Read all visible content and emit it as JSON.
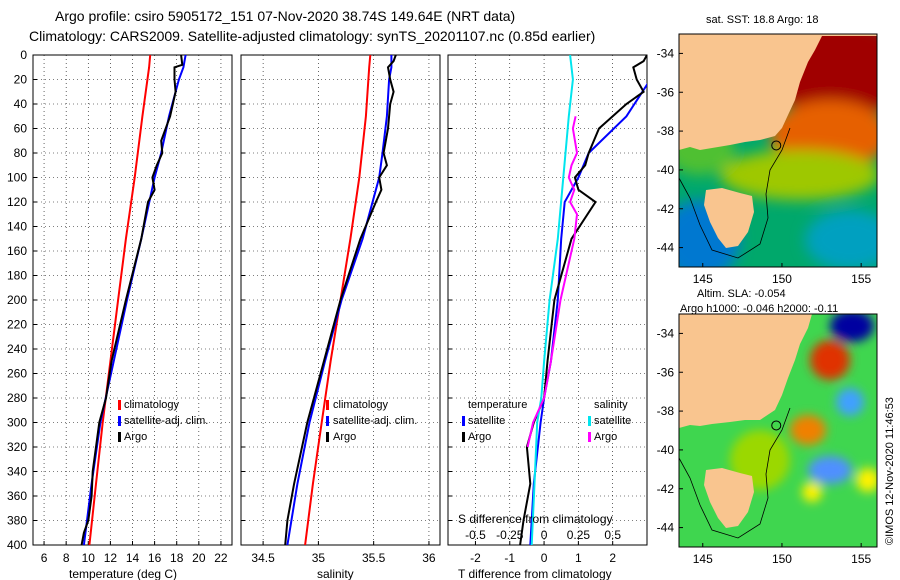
{
  "header": {
    "line1": "Argo profile: csiro 5905172_151 07-Nov-2020 38.74S 149.64E (NRT data)",
    "line2": "Climatology: CARS2009. Satellite-adjusted climatology: synTS_20201107.nc (0.85d earlier)"
  },
  "colors": {
    "climatology": "#ff0000",
    "satellite": "#0000ff",
    "argo": "#000000",
    "salinity_diff": "#ff00ff",
    "sat_salinity_diff": "#00e5ee",
    "land": "#f9c58f"
  },
  "yaxis": {
    "ticks": [
      0,
      20,
      40,
      60,
      80,
      100,
      120,
      140,
      160,
      180,
      200,
      220,
      240,
      260,
      280,
      300,
      320,
      340,
      360,
      380,
      400
    ],
    "labels": [
      "0",
      "20",
      "40",
      "60",
      "80",
      "100",
      "120",
      "140",
      "160",
      "180",
      "200",
      "220",
      "240",
      "260",
      "280",
      "300",
      "320",
      "340",
      "360",
      "380",
      "400"
    ]
  },
  "chart_data": [
    {
      "type": "line",
      "id": "temperature",
      "xlabel": "temperature (deg C)",
      "xlim": [
        5,
        23
      ],
      "ylim": [
        400,
        0
      ],
      "xticks": [
        6,
        8,
        10,
        12,
        14,
        16,
        18,
        20,
        22
      ],
      "xtick_labels": [
        "6",
        "8",
        "10",
        "12",
        "14",
        "16",
        "18",
        "20",
        "22"
      ],
      "legend": {
        "position": "lower-right",
        "entries": [
          {
            "label": "climatology",
            "color": "#ff0000"
          },
          {
            "label": "satellite-adj. clim.",
            "color": "#0000ff"
          },
          {
            "label": "Argo",
            "color": "#000000"
          }
        ]
      },
      "series": [
        {
          "name": "climatology",
          "color": "#ff0000",
          "depth": [
            0,
            10,
            50,
            100,
            150,
            200,
            250,
            300,
            350,
            400
          ],
          "values": [
            15.6,
            15.5,
            14.9,
            14.2,
            13.4,
            12.7,
            12.0,
            11.3,
            10.7,
            10.1
          ]
        },
        {
          "name": "satellite-adj. clim.",
          "color": "#0000ff",
          "depth": [
            0,
            10,
            20,
            50,
            80,
            100,
            150,
            200,
            250,
            300,
            350,
            400
          ],
          "values": [
            18.8,
            18.6,
            18.2,
            17.3,
            16.6,
            16.0,
            14.8,
            13.5,
            12.3,
            11.1,
            10.3,
            9.6
          ]
        },
        {
          "name": "Argo",
          "color": "#000000",
          "depth": [
            0,
            8,
            10,
            20,
            30,
            50,
            70,
            80,
            90,
            100,
            110,
            120,
            150,
            200,
            250,
            280,
            300,
            320,
            340,
            360,
            380,
            390,
            400
          ],
          "values": [
            18.4,
            18.5,
            17.8,
            17.8,
            17.9,
            17.4,
            16.6,
            16.7,
            16.2,
            15.8,
            16.0,
            15.4,
            14.8,
            13.4,
            12.1,
            11.6,
            11.0,
            10.7,
            10.4,
            10.3,
            10.0,
            9.6,
            9.4
          ]
        }
      ]
    },
    {
      "type": "line",
      "id": "salinity",
      "xlabel": "salinity",
      "xlim": [
        34.3,
        36.1
      ],
      "ylim": [
        400,
        0
      ],
      "xticks": [
        34.5,
        35,
        35.5,
        36
      ],
      "xtick_labels": [
        "34.5",
        "35",
        "35.5",
        "36"
      ],
      "legend": {
        "position": "lower-right",
        "entries": [
          {
            "label": "climatology",
            "color": "#ff0000"
          },
          {
            "label": "satellite-adj. clim.",
            "color": "#0000ff"
          },
          {
            "label": "Argo",
            "color": "#000000"
          }
        ]
      },
      "series": [
        {
          "name": "climatology",
          "color": "#ff0000",
          "depth": [
            0,
            10,
            50,
            100,
            150,
            200,
            250,
            300,
            350,
            400
          ],
          "values": [
            35.47,
            35.46,
            35.43,
            35.37,
            35.29,
            35.2,
            35.11,
            35.03,
            34.95,
            34.88
          ]
        },
        {
          "name": "satellite-adj. clim.",
          "color": "#0000ff",
          "depth": [
            0,
            10,
            20,
            50,
            80,
            100,
            150,
            200,
            250,
            300,
            350,
            400
          ],
          "values": [
            35.66,
            35.66,
            35.64,
            35.62,
            35.58,
            35.55,
            35.4,
            35.21,
            35.06,
            34.92,
            34.81,
            34.72
          ]
        },
        {
          "name": "Argo",
          "color": "#000000",
          "depth": [
            0,
            5,
            10,
            20,
            30,
            40,
            60,
            80,
            90,
            100,
            110,
            120,
            150,
            200,
            250,
            300,
            350,
            380,
            400
          ],
          "values": [
            35.7,
            35.68,
            35.63,
            35.65,
            35.68,
            35.65,
            35.63,
            35.59,
            35.62,
            35.55,
            35.57,
            35.52,
            35.38,
            35.2,
            35.05,
            34.9,
            34.78,
            34.72,
            34.7
          ]
        }
      ]
    },
    {
      "type": "line",
      "id": "difference",
      "xlabel": "T difference from climatology",
      "top_axis_label": "S difference from climatology",
      "xlim": [
        -2.8,
        3.0
      ],
      "ylim": [
        400,
        0
      ],
      "xticks": [
        -2,
        -1,
        0,
        1,
        2
      ],
      "xtick_labels": [
        "-2",
        "-1",
        "0",
        "1",
        "2"
      ],
      "top_xlim": [
        -0.7,
        0.75
      ],
      "top_xticks": [
        -0.5,
        -0.25,
        0,
        0.25,
        0.5
      ],
      "top_xtick_labels": [
        "-0.5",
        "-0.25",
        "0",
        "0.25",
        "0.5"
      ],
      "legend_temperature": {
        "title": "temperature",
        "entries": [
          {
            "label": "satellite",
            "color": "#0000ff"
          },
          {
            "label": "Argo",
            "color": "#000000"
          }
        ]
      },
      "legend_salinity": {
        "title": "salinity",
        "entries": [
          {
            "label": "satellite",
            "color": "#00e5ee"
          },
          {
            "label": "Argo",
            "color": "#ff00ff"
          }
        ]
      },
      "series": [
        {
          "name": "T satellite",
          "axis": "T",
          "color": "#0000ff",
          "depth": [
            0,
            20,
            50,
            80,
            100,
            120,
            150,
            200,
            250,
            280,
            300,
            350,
            400
          ],
          "values": [
            3.2,
            3.1,
            2.4,
            1.3,
            1.0,
            0.6,
            0.5,
            0.4,
            0.2,
            0.0,
            -0.1,
            -0.3,
            -0.4
          ]
        },
        {
          "name": "T Argo",
          "axis": "T",
          "color": "#000000",
          "depth": [
            0,
            5,
            10,
            20,
            30,
            40,
            60,
            80,
            90,
            100,
            110,
            120,
            150,
            200,
            250,
            280,
            300,
            320,
            350,
            380,
            400
          ],
          "values": [
            3.0,
            2.9,
            2.6,
            2.7,
            2.9,
            2.4,
            1.6,
            1.3,
            1.2,
            0.9,
            1.0,
            1.5,
            0.8,
            0.3,
            0.1,
            0.0,
            -0.3,
            -0.5,
            -0.4,
            -0.6,
            -0.7
          ]
        },
        {
          "name": "S satellite",
          "axis": "S",
          "color": "#00e5ee",
          "depth": [
            0,
            10,
            20,
            50,
            100,
            150,
            200,
            250,
            280,
            300,
            350,
            400
          ],
          "values": [
            0.19,
            0.2,
            0.21,
            0.18,
            0.14,
            0.1,
            0.04,
            0.0,
            -0.02,
            -0.05,
            -0.07,
            -0.09
          ]
        },
        {
          "name": "S Argo",
          "axis": "S",
          "color": "#ff00ff",
          "depth": [
            50,
            60,
            80,
            90,
            100,
            110,
            120,
            130,
            150,
            200,
            250,
            280,
            300,
            320
          ],
          "values": [
            0.23,
            0.21,
            0.24,
            0.2,
            0.18,
            0.22,
            0.19,
            0.24,
            0.22,
            0.12,
            0.05,
            0.0,
            -0.08,
            -0.12
          ]
        }
      ]
    },
    {
      "type": "heatmap",
      "id": "sst-map",
      "title": "sat. SST: 18.8  Argo: 18",
      "xlim": [
        143.5,
        156
      ],
      "ylim": [
        -45,
        -33
      ],
      "xticks": [
        145,
        150,
        155
      ],
      "xtick_labels": [
        "145",
        "150",
        "155"
      ],
      "yticks": [
        -34,
        -36,
        -38,
        -40,
        -42,
        -44
      ],
      "ytick_labels": [
        "-34",
        "-36",
        "-38",
        "-40",
        "-42",
        "-44"
      ],
      "marker": {
        "lon": 149.64,
        "lat": -38.74
      }
    },
    {
      "type": "heatmap",
      "id": "sla-map",
      "title": "Altim. SLA: -0.054",
      "subtitle": "Argo h1000: -0.046 h2000: -0.11",
      "xlim": [
        143.5,
        156
      ],
      "ylim": [
        -45,
        -33
      ],
      "xticks": [
        145,
        150,
        155
      ],
      "xtick_labels": [
        "145",
        "150",
        "155"
      ],
      "yticks": [
        -34,
        -36,
        -38,
        -40,
        -42,
        -44
      ],
      "ytick_labels": [
        "-34",
        "-36",
        "-38",
        "-40",
        "-42",
        "-44"
      ],
      "marker": {
        "lon": 149.64,
        "lat": -38.74
      }
    }
  ],
  "footer": {
    "stamp": "©IMOS 12-Nov-2020 11:46:53"
  }
}
